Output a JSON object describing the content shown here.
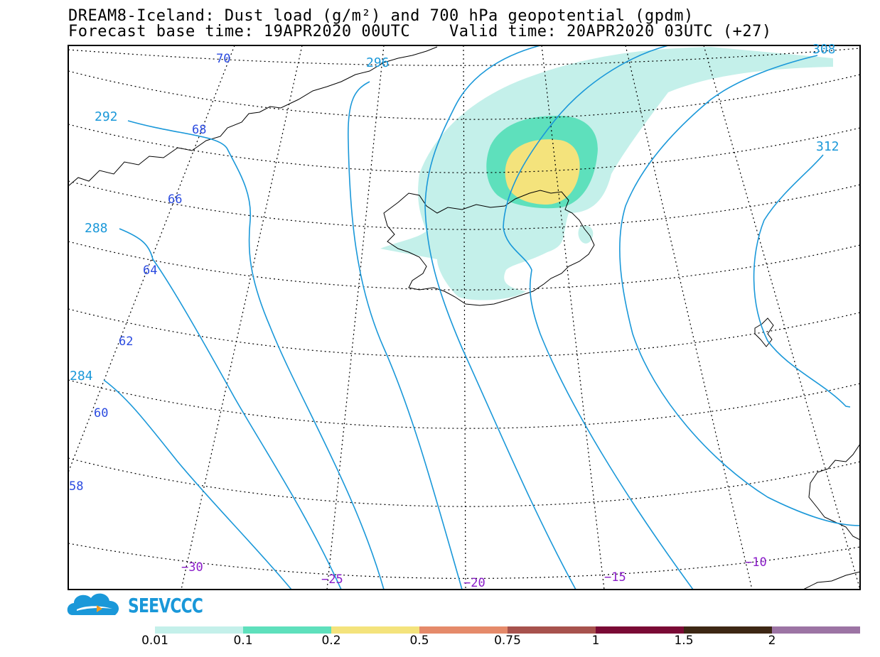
{
  "title_line1": "DREAM8-Iceland: Dust load (g/m²) and 700 hPa geopotential (gpdm)",
  "title_line2": "Forecast base time: 19APR2020 00UTC    Valid time: 20APR2020 03UTC (+27)",
  "logo_text": "SEEVCCC",
  "colors": {
    "contour": "#1a98d9",
    "lat_label": "#2b4be0",
    "lon_label": "#8a1cc9",
    "dust_0_01": "#c4f0ea",
    "dust_0_1": "#5ee0bc",
    "dust_0_2": "#f4e37c",
    "dust_0_5": "#e58a6a",
    "dust_0_75": "#a7524d",
    "dust_1": "#7a0a35",
    "dust_1_5": "#3d2714",
    "dust_2": "#9c74a4"
  },
  "geopotential_labels": [
    "292",
    "296",
    "308",
    "312",
    "288",
    "284"
  ],
  "latitude_labels": [
    "70",
    "68",
    "66",
    "64",
    "62",
    "60",
    "58"
  ],
  "longitude_labels": [
    "−30",
    "−25",
    "−20",
    "−15",
    "−10"
  ],
  "colorbar": {
    "colors": [
      "#c4f0ea",
      "#5ee0bc",
      "#f4e37c",
      "#e58a6a",
      "#a7524d",
      "#7a0a35",
      "#3d2714",
      "#9c74a4"
    ],
    "labels": [
      "0.01",
      "0.1",
      "0.2",
      "0.5",
      "0.75",
      "1",
      "1.5",
      "2"
    ]
  }
}
